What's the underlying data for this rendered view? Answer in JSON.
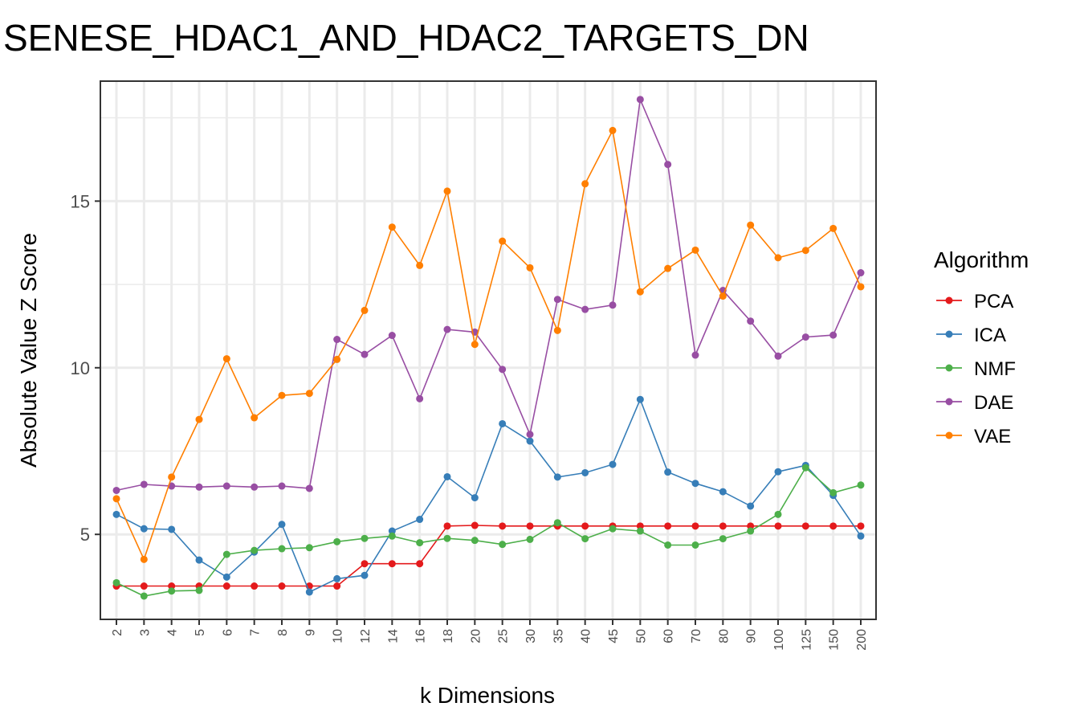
{
  "chart_data": {
    "type": "line",
    "title": "SENESE_HDAC1_AND_HDAC2_TARGETS_DN",
    "xlabel": "k Dimensions",
    "ylabel": "Absolute Value Z Score",
    "categories": [
      "2",
      "3",
      "4",
      "5",
      "6",
      "7",
      "8",
      "9",
      "10",
      "12",
      "14",
      "16",
      "18",
      "20",
      "25",
      "30",
      "35",
      "40",
      "45",
      "50",
      "60",
      "70",
      "80",
      "90",
      "100",
      "125",
      "150",
      "200"
    ],
    "ylim": [
      2.45,
      18.6
    ],
    "yticks": [
      5,
      10,
      15
    ],
    "grid": true,
    "legend": {
      "title": "Algorithm",
      "position": "right"
    },
    "series": [
      {
        "name": "PCA",
        "color": "#e41a1c",
        "values": [
          3.45,
          3.45,
          3.45,
          3.45,
          3.45,
          3.45,
          3.45,
          3.45,
          3.45,
          4.12,
          4.12,
          4.12,
          5.25,
          5.27,
          5.25,
          5.25,
          5.25,
          5.25,
          5.25,
          5.25,
          5.25,
          5.25,
          5.25,
          5.25,
          5.25,
          5.25,
          5.25,
          5.25
        ]
      },
      {
        "name": "ICA",
        "color": "#377eb8",
        "values": [
          5.6,
          5.17,
          5.15,
          4.23,
          3.72,
          4.47,
          5.3,
          3.27,
          3.67,
          3.77,
          5.1,
          5.45,
          6.73,
          6.1,
          8.32,
          7.8,
          6.72,
          6.85,
          7.1,
          9.05,
          6.87,
          6.53,
          6.28,
          5.85,
          6.88,
          7.07,
          6.17,
          4.95
        ]
      },
      {
        "name": "NMF",
        "color": "#4daf4a",
        "values": [
          3.55,
          3.15,
          3.3,
          3.32,
          4.4,
          4.52,
          4.57,
          4.6,
          4.78,
          4.88,
          4.95,
          4.75,
          4.88,
          4.82,
          4.7,
          4.85,
          5.35,
          4.87,
          5.17,
          5.1,
          4.68,
          4.68,
          4.87,
          5.1,
          5.6,
          7.0,
          6.25,
          6.48
        ]
      },
      {
        "name": "DAE",
        "color": "#984ea3",
        "values": [
          6.32,
          6.5,
          6.45,
          6.42,
          6.45,
          6.42,
          6.45,
          6.38,
          10.85,
          10.4,
          10.97,
          9.07,
          11.15,
          11.07,
          9.95,
          8.0,
          12.05,
          11.75,
          11.88,
          18.05,
          16.1,
          10.38,
          12.32,
          11.4,
          10.35,
          10.92,
          10.98,
          12.85
        ]
      },
      {
        "name": "VAE",
        "color": "#ff7f00",
        "values": [
          6.07,
          4.25,
          6.72,
          8.45,
          10.27,
          8.5,
          9.17,
          9.23,
          10.25,
          11.72,
          14.22,
          13.07,
          15.3,
          10.7,
          13.8,
          13.0,
          11.12,
          15.52,
          17.12,
          12.28,
          12.98,
          13.53,
          12.15,
          14.28,
          13.3,
          13.52,
          14.18,
          12.43
        ]
      }
    ]
  }
}
